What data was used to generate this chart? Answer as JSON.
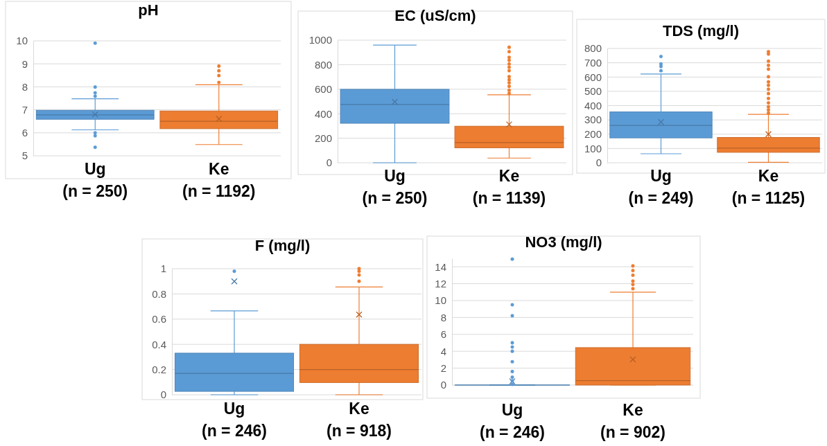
{
  "chart_data": [
    {
      "type": "box",
      "title": "pH",
      "categories": [
        "Ug\n(n = 250)",
        "Ke\n(n = 1192)"
      ],
      "colors": [
        "#5b9bd5",
        "#ed7d31"
      ],
      "ylim": [
        5,
        10
      ],
      "yticks": [
        5,
        6,
        7,
        8,
        9,
        10
      ],
      "grid": "y",
      "boxes": [
        {
          "low": 6.13,
          "q1": 6.59,
          "median": 6.78,
          "q3": 6.98,
          "high": 7.48,
          "mean": 6.8,
          "outliers": [
            5.37,
            5.87,
            6.0,
            7.59,
            7.74,
            7.99,
            9.9
          ]
        },
        {
          "low": 5.49,
          "q1": 6.18,
          "median": 6.5,
          "q3": 6.95,
          "high": 8.09,
          "mean": 6.61,
          "outliers": [
            8.19,
            8.49,
            8.7,
            8.9
          ]
        }
      ]
    },
    {
      "type": "box",
      "title": "EC (uS/cm)",
      "categories": [
        "Ug\n(n = 250)",
        "Ke\n(n = 1139)"
      ],
      "colors": [
        "#5b9bd5",
        "#ed7d31"
      ],
      "ylim": [
        0,
        1000
      ],
      "yticks": [
        0,
        200,
        400,
        600,
        800,
        1000
      ],
      "grid": "y",
      "boxes": [
        {
          "low": 0,
          "q1": 322,
          "median": 475,
          "q3": 599,
          "high": 960,
          "mean": 497
        },
        {
          "low": 38,
          "q1": 122,
          "median": 164,
          "q3": 298,
          "high": 554,
          "mean": 313,
          "outliers": [
            565,
            591,
            623,
            652,
            677,
            702,
            751,
            779,
            806,
            836,
            860,
            906,
            942
          ]
        }
      ]
    },
    {
      "type": "box",
      "title": "TDS (mg/l)",
      "categories": [
        "Ug\n(n = 249)",
        "Ke\n(n = 1125)"
      ],
      "colors": [
        "#5b9bd5",
        "#ed7d31"
      ],
      "ylim": [
        0,
        800
      ],
      "yticks": [
        0,
        100,
        200,
        300,
        400,
        500,
        600,
        700,
        800
      ],
      "grid": "y",
      "boxes": [
        {
          "low": 63,
          "q1": 174,
          "median": 261,
          "q3": 356,
          "high": 621,
          "mean": 285,
          "outliers": [
            644,
            674,
            692,
            744
          ]
        },
        {
          "low": 3,
          "q1": 73,
          "median": 102,
          "q3": 177,
          "high": 339,
          "mean": 200,
          "outliers": [
            348,
            370,
            392,
            419,
            450,
            484,
            515,
            542,
            566,
            602,
            655,
            682,
            711,
            761,
            777
          ]
        }
      ]
    },
    {
      "type": "box",
      "title": "F (mg/l)",
      "categories": [
        "Ug\n(n = 246)",
        "Ke\n(n = 918)"
      ],
      "colors": [
        "#5b9bd5",
        "#ed7d31"
      ],
      "ylim": [
        0,
        1
      ],
      "yticks": [
        0,
        0.2,
        0.4,
        0.6,
        0.8,
        1
      ],
      "grid": "y",
      "boxes": [
        {
          "low": 0,
          "q1": 0.027,
          "median": 0.17,
          "q3": 0.33,
          "high": 0.665,
          "mean": 0.9,
          "outliers": [
            0.98
          ]
        },
        {
          "low": 0,
          "q1": 0.097,
          "median": 0.2,
          "q3": 0.4,
          "high": 0.855,
          "mean": 0.636,
          "outliers": [
            0.9,
            0.95,
            0.98,
            1.0
          ]
        }
      ]
    },
    {
      "type": "box",
      "title": "NO3 (mg/l)",
      "categories": [
        "Ug\n(n = 246)",
        "Ke\n(n = 902)"
      ],
      "colors": [
        "#5b9bd5",
        "#ed7d31"
      ],
      "ylim": [
        0,
        15
      ],
      "yticks": [
        0,
        2,
        4,
        6,
        8,
        10,
        12,
        14
      ],
      "grid": "y",
      "boxes": [
        {
          "low": 0,
          "q1": 0,
          "median": 0,
          "q3": 0,
          "high": 0,
          "mean": 0.44,
          "outliers": [
            0.08,
            0.5,
            0.93,
            1.6,
            2.76,
            4.0,
            4.5,
            5.0,
            8.2,
            9.5,
            14.9
          ]
        },
        {
          "low": 0,
          "q1": 0,
          "median": 0.52,
          "q3": 4.43,
          "high": 11.0,
          "mean": 3.03,
          "outliers": [
            11.4,
            11.9,
            12.3,
            13.0,
            13.55,
            14.1
          ]
        }
      ]
    }
  ]
}
